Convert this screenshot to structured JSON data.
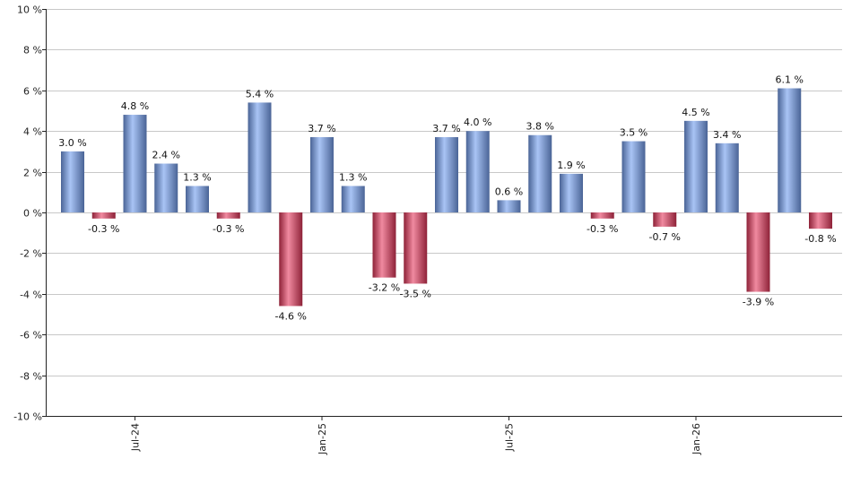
{
  "chart_data": {
    "type": "bar",
    "ylim": [
      -10,
      10
    ],
    "y_ticks": [
      {
        "value": 10,
        "label": "10 %"
      },
      {
        "value": 8,
        "label": "8 %"
      },
      {
        "value": 6,
        "label": "6 %"
      },
      {
        "value": 4,
        "label": "4 %"
      },
      {
        "value": 2,
        "label": "2 %"
      },
      {
        "value": 0,
        "label": "0 %"
      },
      {
        "value": -2,
        "label": "-2 %"
      },
      {
        "value": -4,
        "label": "-4 %"
      },
      {
        "value": -6,
        "label": "-6 %"
      },
      {
        "value": -8,
        "label": "-8 %"
      },
      {
        "value": -10,
        "label": "-10 %"
      }
    ],
    "x_tick_labels": [
      {
        "label": "Jul-24",
        "bar_index": 2
      },
      {
        "label": "Jan-25",
        "bar_index": 8
      },
      {
        "label": "Jul-25",
        "bar_index": 14
      },
      {
        "label": "Jan-26",
        "bar_index": 20
      }
    ],
    "values": [
      3.0,
      -0.3,
      4.8,
      2.4,
      1.3,
      -0.3,
      5.4,
      -4.6,
      3.7,
      1.3,
      -3.2,
      -3.5,
      3.7,
      4.0,
      0.6,
      3.8,
      1.9,
      -0.3,
      3.5,
      -0.7,
      4.5,
      3.4,
      -3.9,
      6.1,
      -0.8
    ],
    "data_labels": [
      "3.0 %",
      "-0.3 %",
      "4.8 %",
      "2.4 %",
      "1.3 %",
      "-0.3 %",
      "5.4 %",
      "-4.6 %",
      "3.7 %",
      "1.3 %",
      "-3.2 %",
      "-3.5 %",
      "3.7 %",
      "4.0 %",
      "0.6 %",
      "3.8 %",
      "1.9 %",
      "-0.3 %",
      "3.5 %",
      "-0.7 %",
      "4.5 %",
      "3.4 %",
      "-3.9 %",
      "6.1 %",
      "-0.8 %"
    ],
    "grid": true,
    "colors": {
      "positive_light": "#a9c4f5",
      "positive_mid": "#7b9fe6",
      "positive_dark": "#4a6496",
      "negative_light": "#f08aa0",
      "negative_mid": "#d84a66",
      "negative_dark": "#8e2238",
      "grid": "#c8c8c8",
      "axis": "#222222"
    }
  }
}
